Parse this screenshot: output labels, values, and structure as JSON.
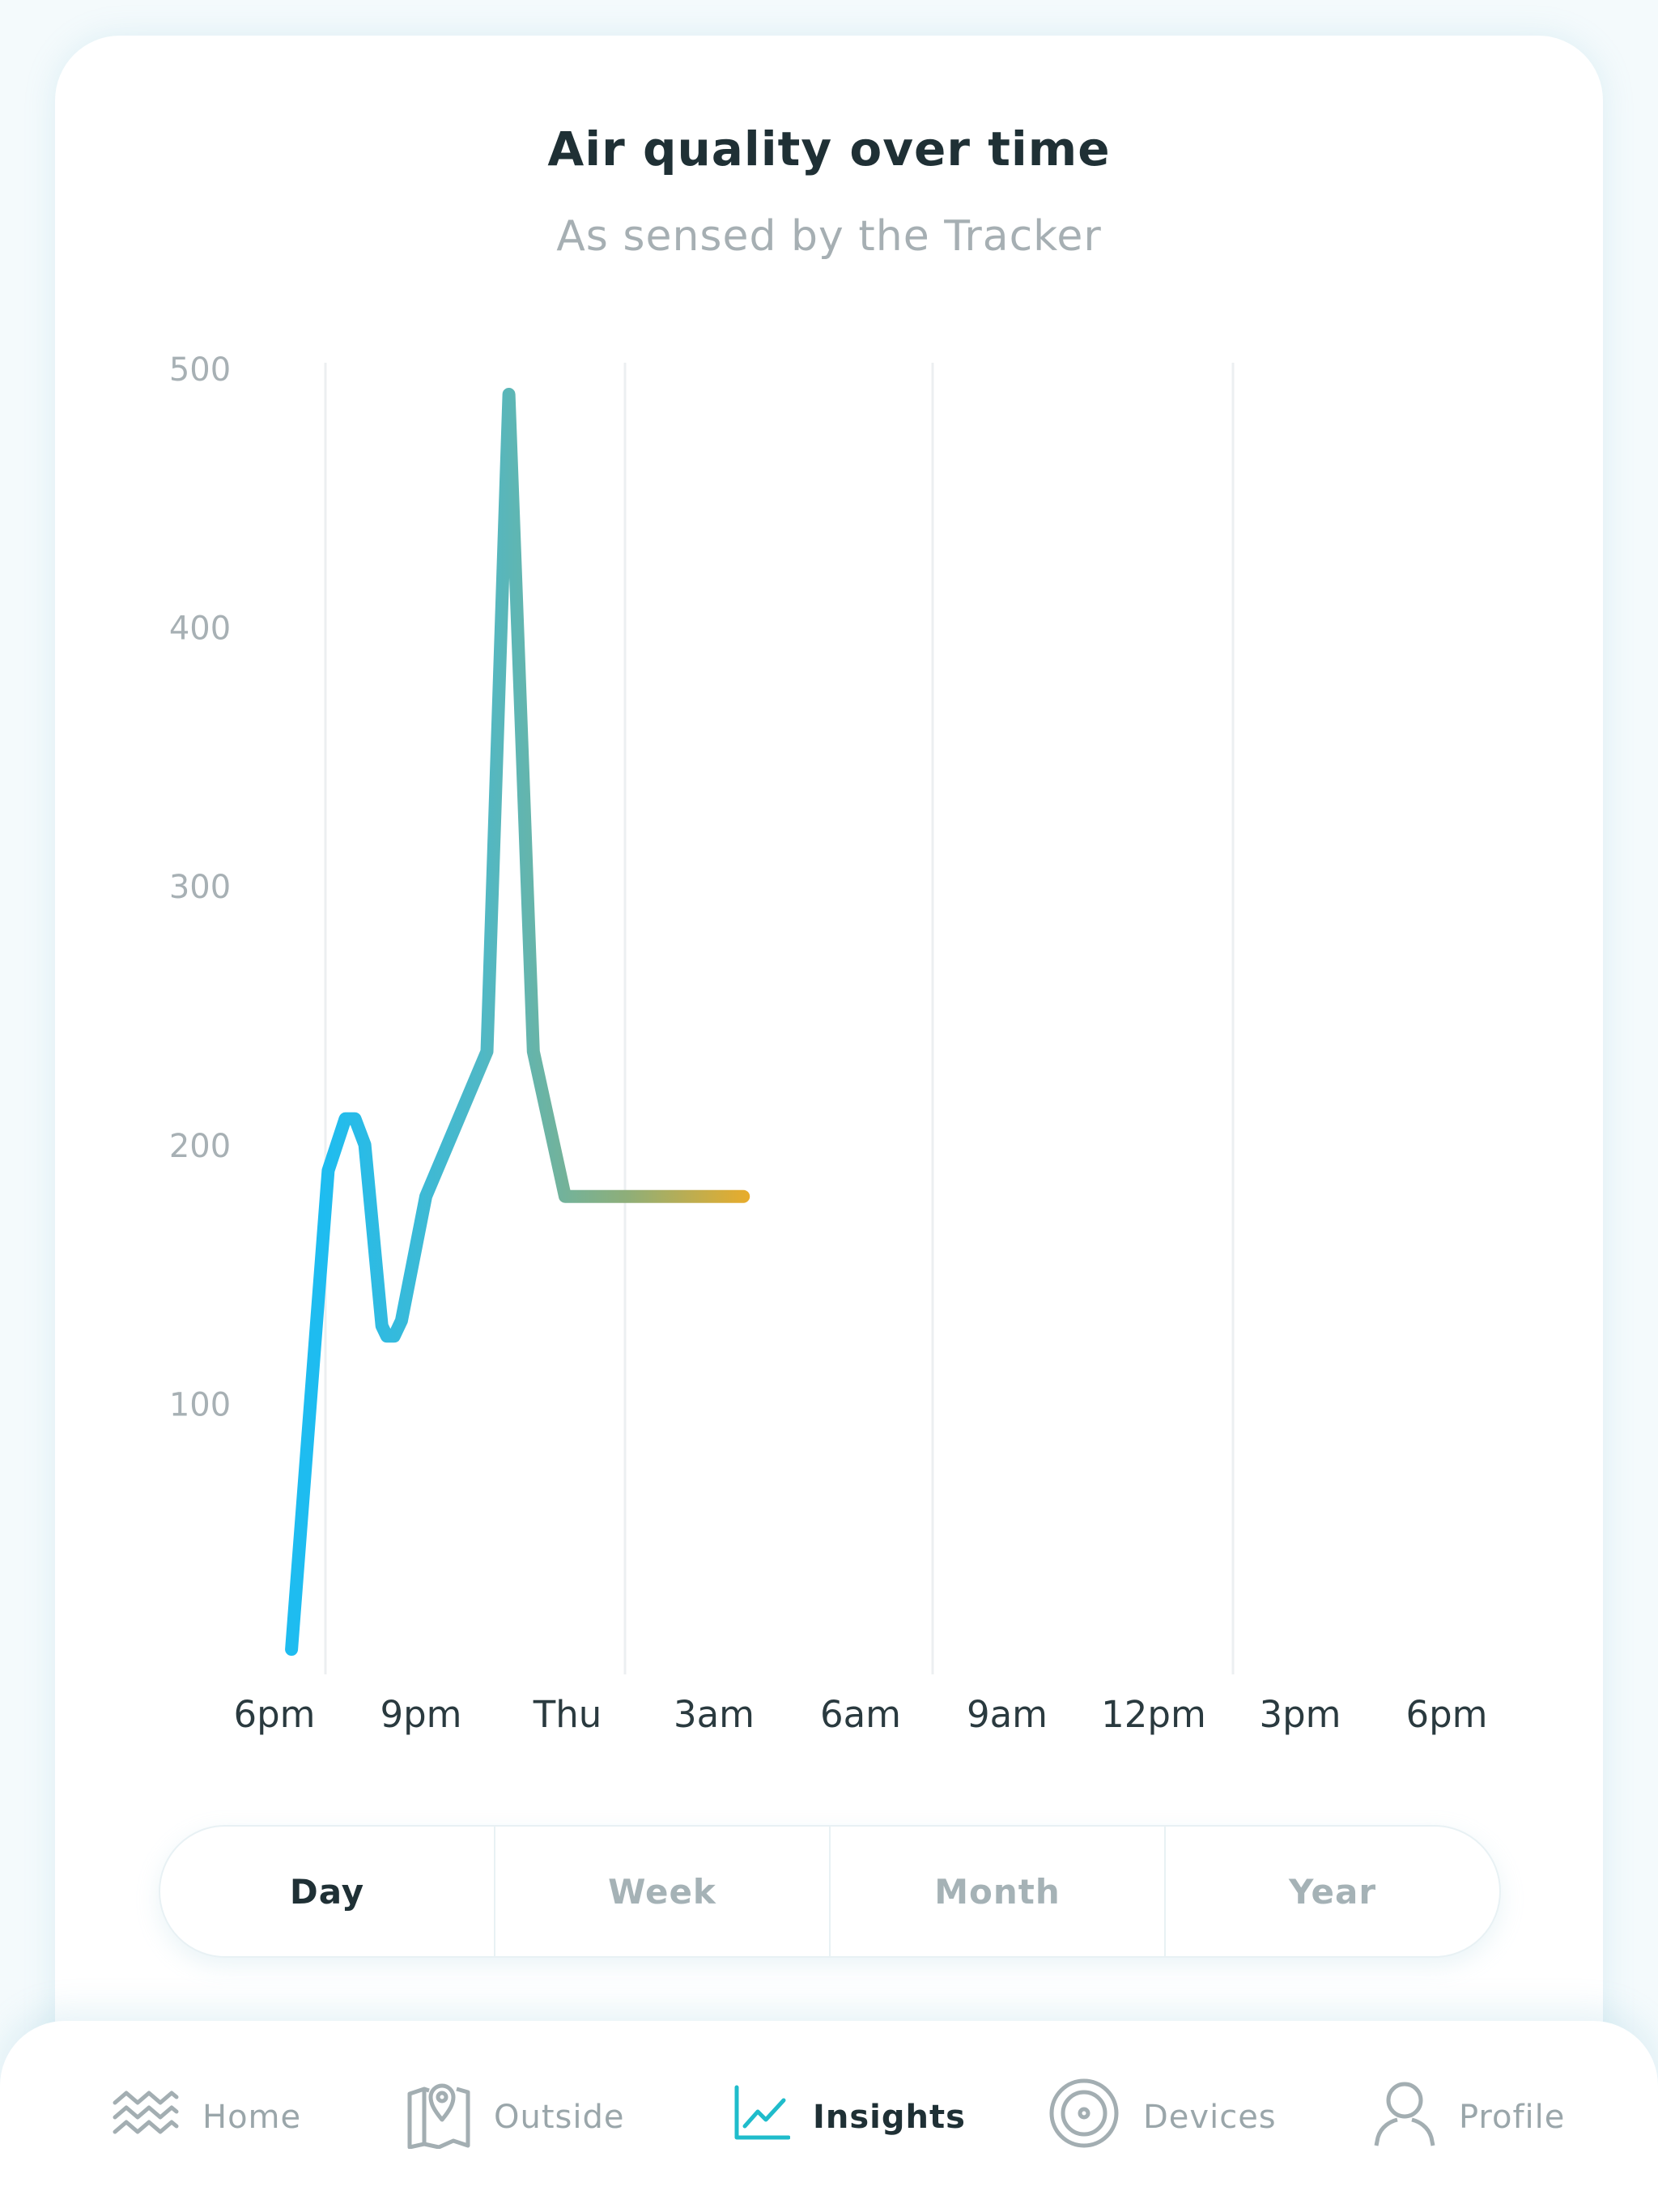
{
  "header": {
    "title": "Air quality over time",
    "subtitle": "As sensed by the Tracker"
  },
  "chart_data": {
    "type": "line",
    "title": "Air quality over time",
    "subtitle": "As sensed by the Tracker",
    "xlabel": "",
    "ylabel": "",
    "x_tick_labels": [
      "6pm",
      "9pm",
      "Thu",
      "3am",
      "6am",
      "9am",
      "12pm",
      "3pm",
      "6pm"
    ],
    "y_tick_labels": [
      "500",
      "400",
      "300",
      "200",
      "100"
    ],
    "ylim": [
      0,
      500
    ],
    "xlim": [
      0,
      24
    ],
    "grid": "vertical",
    "series": [
      {
        "name": "Air quality",
        "x": [
          0.35,
          1.1,
          1.45,
          1.65,
          1.85,
          2.2,
          2.3,
          2.45,
          2.6,
          3.1,
          4.35,
          4.8,
          5.3,
          5.95,
          6.5,
          7.05,
          7.15,
          8.2,
          9.6
        ],
        "y": [
          5,
          190,
          210,
          210,
          200,
          130,
          126,
          126,
          132,
          180,
          236,
          490,
          236,
          180,
          180,
          180,
          180,
          180,
          180
        ]
      }
    ],
    "gradient_colors": [
      "#1ebcf0",
      "#5ab3b5",
      "#8fae78",
      "#f5ac20",
      "#f06a1d",
      "#ea1c28"
    ]
  },
  "segments": {
    "day": "Day",
    "week": "Week",
    "month": "Month",
    "year": "Year",
    "active": "Day"
  },
  "tabbar": {
    "home": "Home",
    "outside": "Outside",
    "insights": "Insights",
    "devices": "Devices",
    "profile": "Profile",
    "active": "Insights",
    "accent_color": "#1fbccb",
    "icon_color": "#a3aeb2"
  }
}
